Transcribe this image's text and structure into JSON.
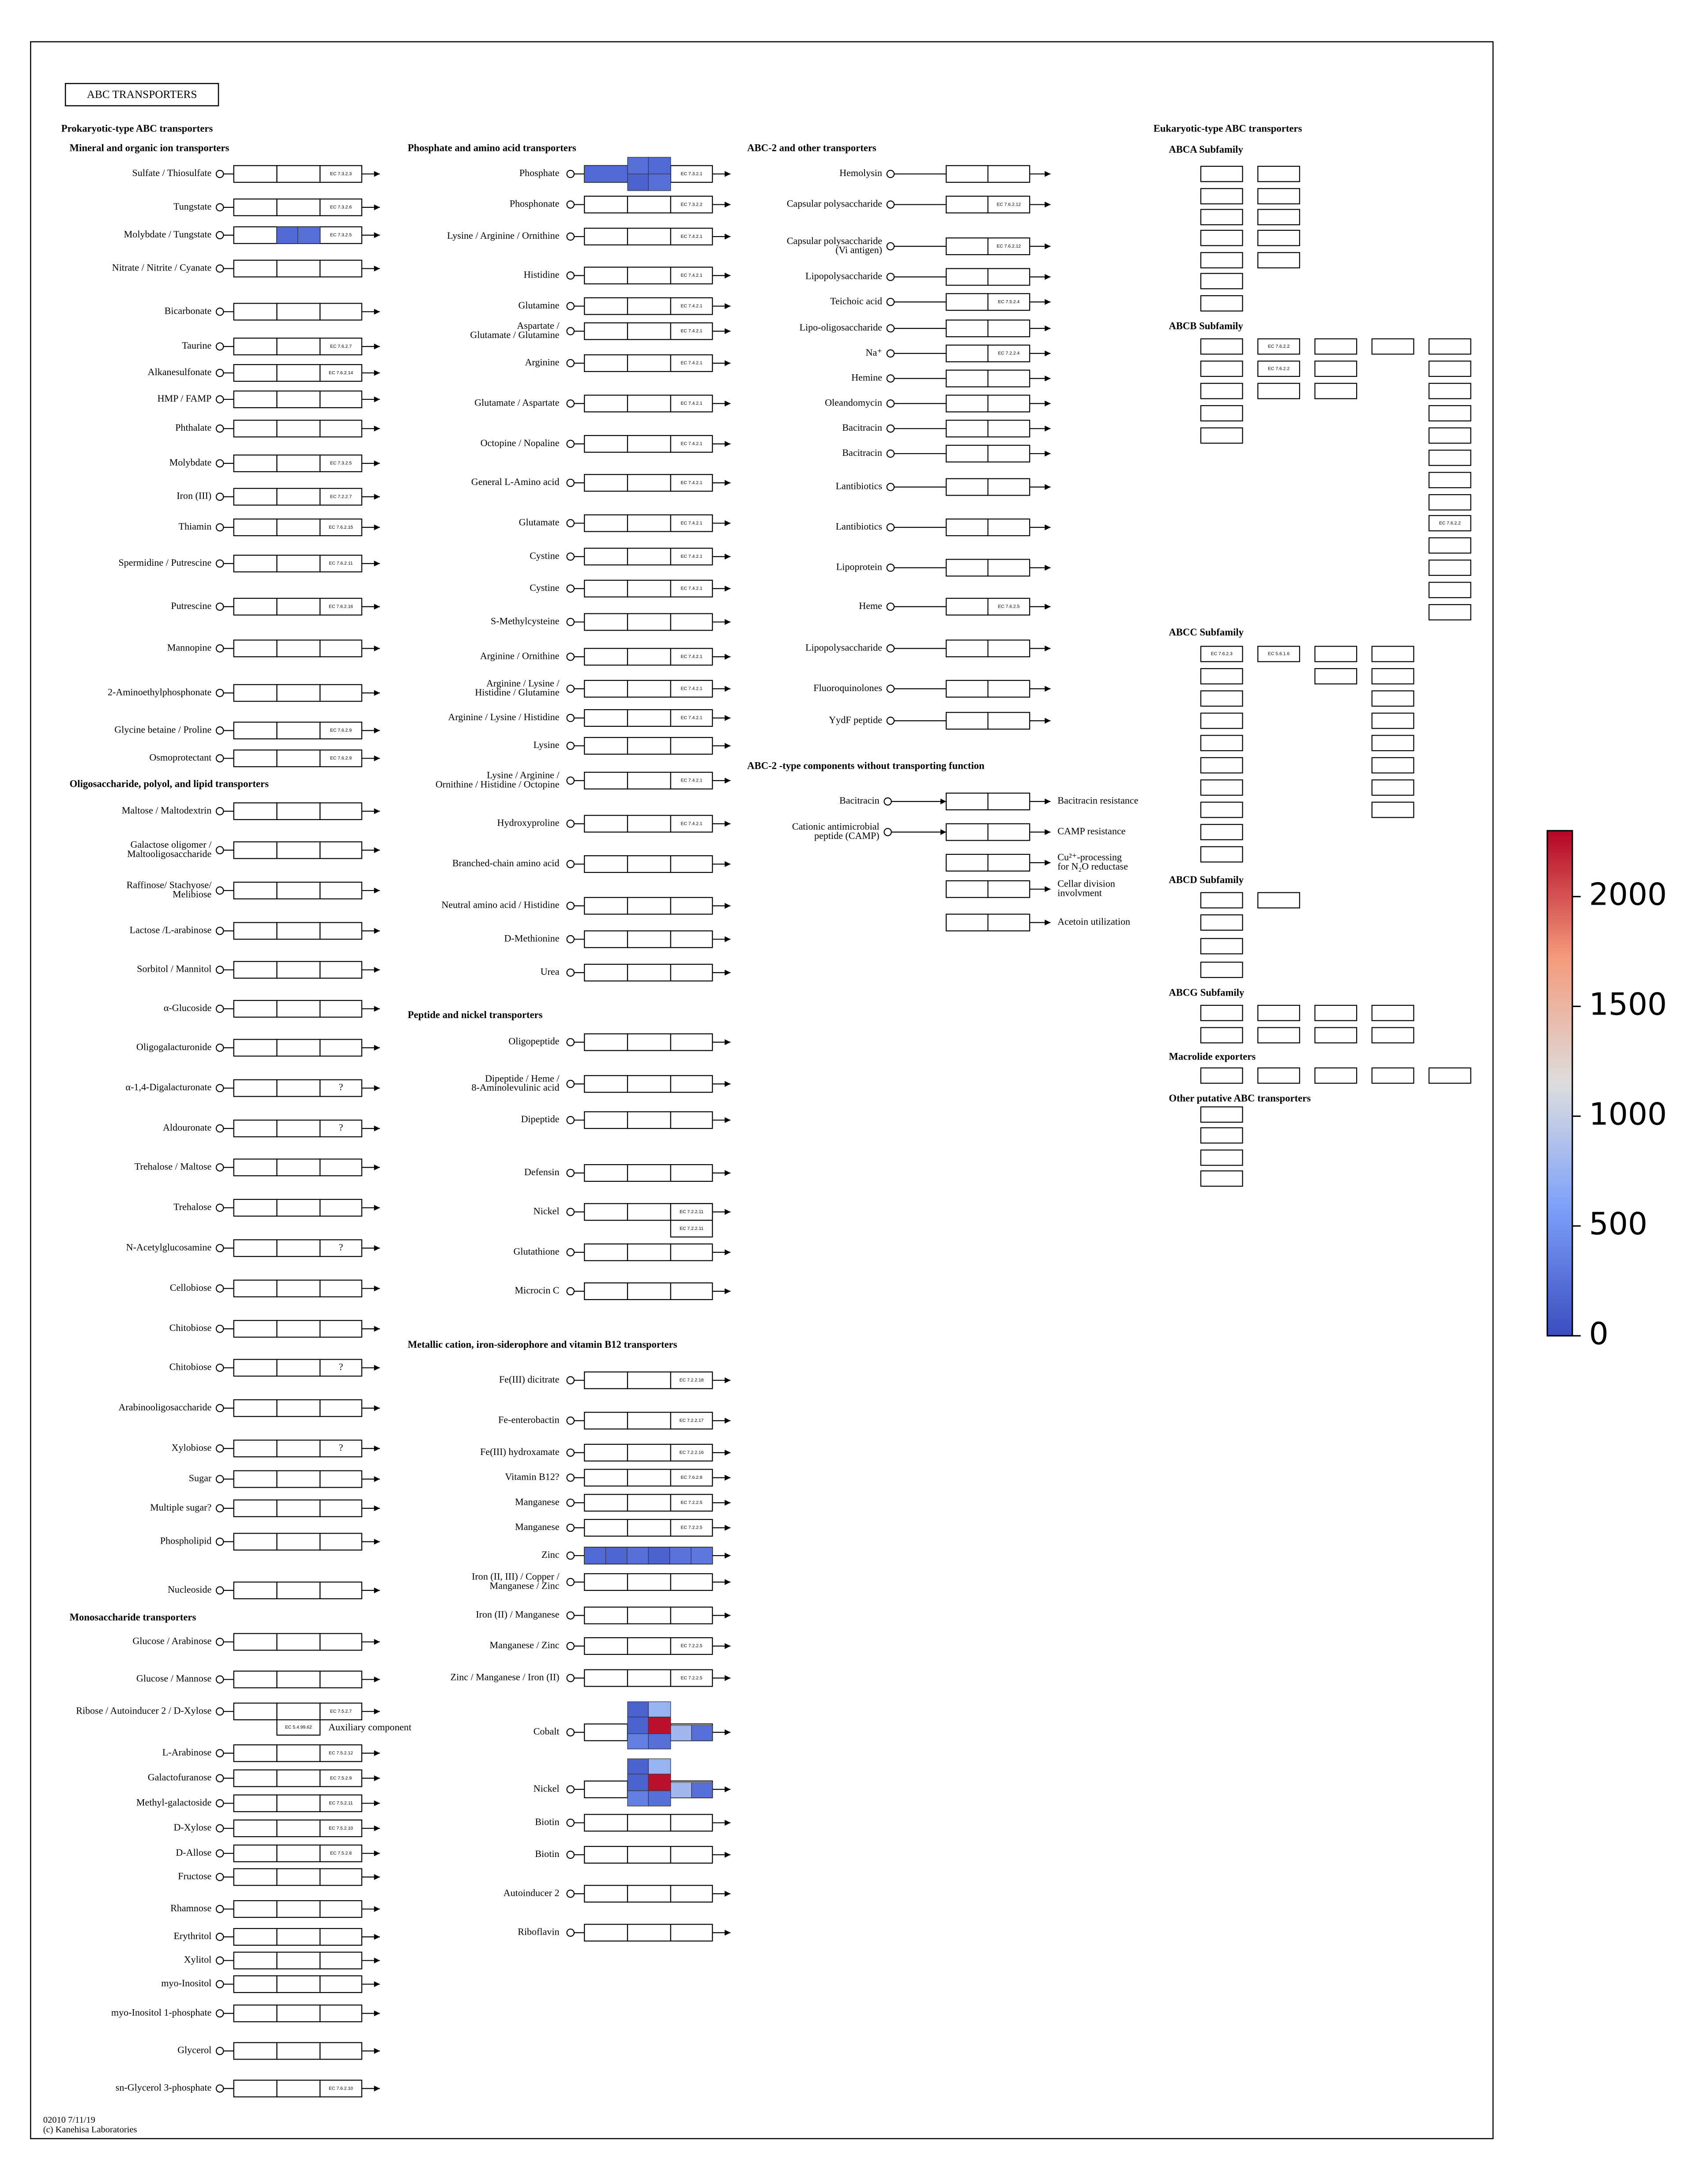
{
  "title": "ABC TRANSPORTERS",
  "prokaryotic_title": "Prokaryotic-type ABC transporters",
  "columns": [
    {
      "groups": [
        {
          "title": "Mineral and organic ion transporters",
          "rows": [
            {
              "label": "Sulfate / Thiosulfate",
              "ec": "EC 7.3.2.3"
            },
            {
              "label": "Tungstate",
              "ec": "EC 7.3.2.6"
            },
            {
              "label": "Molybdate / Tungstate",
              "ec": "EC 7.3.2.5",
              "cells": [
                200,
                250
              ]
            },
            {
              "label": "Nitrate / Nitrite / Cyanate"
            },
            {
              "label": "Bicarbonate"
            },
            {
              "label": "Taurine",
              "ec": "EC 7.6.2.7"
            },
            {
              "label": "Alkanesulfonate",
              "ec": "EC 7.6.2.14"
            },
            {
              "label": "HMP / FAMP"
            },
            {
              "label": "Phthalate"
            },
            {
              "label": "Molybdate",
              "ec": "EC 7.3.2.5"
            },
            {
              "label": "Iron (III)",
              "ec": "EC 7.2.2.7"
            },
            {
              "label": "Thiamin",
              "ec": "EC 7.6.2.15"
            },
            {
              "label": "Spermidine / Putrescine",
              "ec": "EC 7.6.2.11"
            },
            {
              "label": "Putrescine",
              "ec": "EC 7.6.2.16"
            },
            {
              "label": "Mannopine"
            },
            {
              "label": "2-Aminoethylphosphonate"
            },
            {
              "label": "Glycine betaine / Proline",
              "ec": "EC 7.6.2.9"
            },
            {
              "label": "Osmoprotectant",
              "ec": "EC 7.6.2.9"
            }
          ]
        },
        {
          "title": "Oligosaccharide, polyol, and lipid transporters",
          "rows": [
            {
              "label": "Maltose / Maltodextrin"
            },
            {
              "label": [
                "Galactose oligomer /",
                "Maltooligosaccharide"
              ]
            },
            {
              "label": [
                "Raffinose/ Stachyose/",
                "Melibiose"
              ]
            },
            {
              "label": "Lactose /L-arabinose"
            },
            {
              "label": "Sorbitol / Mannitol"
            },
            {
              "label": "α-Glucoside"
            },
            {
              "label": "Oligogalacturonide"
            },
            {
              "label": "α-1,4-Digalacturonate",
              "ec": "?"
            },
            {
              "label": "Aldouronate",
              "ec": "?"
            },
            {
              "label": "Trehalose / Maltose"
            },
            {
              "label": "Trehalose"
            },
            {
              "label": "N-Acetylglucosamine",
              "ec": "?"
            },
            {
              "label": "Cellobiose"
            },
            {
              "label": "Chitobiose"
            },
            {
              "label": "Chitobiose",
              "ec": "?"
            },
            {
              "label": "Arabinooligosaccharide"
            },
            {
              "label": "Xylobiose",
              "ec": "?"
            },
            {
              "label": "Sugar"
            },
            {
              "label": "Multiple sugar?"
            },
            {
              "label": "Phospholipid"
            },
            {
              "label": "Nucleoside"
            }
          ]
        },
        {
          "title": "Monosaccharide transporters",
          "rows": [
            {
              "label": "Glucose / Arabinose"
            },
            {
              "label": "Glucose / Mannose"
            },
            {
              "label": "Ribose / Autoinducer 2 / D-Xylose",
              "ec": "EC 7.5.2.7",
              "aux_ec": "EC 5.4.99.62",
              "aux_label": "Auxiliary component"
            },
            {
              "label": "L-Arabinose",
              "ec": "EC 7.5.2.12"
            },
            {
              "label": "Galactofuranose",
              "ec": "EC 7.5.2.9"
            },
            {
              "label": "Methyl-galactoside",
              "ec": "EC 7.5.2.11"
            },
            {
              "label": "D-Xylose",
              "ec": "EC 7.5.2.10"
            },
            {
              "label": "D-Allose",
              "ec": "EC 7.5.2.8"
            },
            {
              "label": "Fructose"
            },
            {
              "label": "Rhamnose"
            },
            {
              "label": "Erythritol"
            },
            {
              "label": "Xylitol"
            },
            {
              "label": "myo-Inositol"
            },
            {
              "label": "myo-Inositol 1-phosphate"
            },
            {
              "label": "Glycerol"
            },
            {
              "label": "sn-Glycerol 3-phosphate",
              "ec": "EC 7.6.2.10"
            }
          ]
        }
      ]
    },
    {
      "groups": [
        {
          "title": "Phosphate and amino acid transporters",
          "rows": [
            {
              "label": "Phosphate",
              "ec": "EC 7.3.2.1",
              "cells": [
                200,
                250,
                200,
                150,
                250
              ]
            },
            {
              "label": "Phosphonate",
              "ec": "EC 7.3.2.2"
            },
            {
              "label": "Lysine / Arginine / Ornithine",
              "ec": "EC 7.4.2.1"
            },
            {
              "label": "Histidine",
              "ec": "EC 7.4.2.1"
            },
            {
              "label": "Glutamine",
              "ec": "EC 7.4.2.1"
            },
            {
              "label": [
                "Aspartate /",
                "Glutamate / Glutamine"
              ],
              "ec": "EC 7.4.2.1"
            },
            {
              "label": "Arginine",
              "ec": "EC 7.4.2.1"
            },
            {
              "label": "Glutamate / Aspartate",
              "ec": "EC 7.4.2.1"
            },
            {
              "label": "Octopine / Nopaline",
              "ec": "EC 7.4.2.1"
            },
            {
              "label": "General L-Amino acid",
              "ec": "EC 7.4.2.1"
            },
            {
              "label": "Glutamate",
              "ec": "EC 7.4.2.1"
            },
            {
              "label": "Cystine",
              "ec": "EC 7.4.2.1"
            },
            {
              "label": "Cystine",
              "ec": "EC 7.4.2.1"
            },
            {
              "label": "S-Methylcysteine"
            },
            {
              "label": "Arginine / Ornithine",
              "ec": "EC 7.4.2.1"
            },
            {
              "label": [
                "Arginine / Lysine /",
                "Histidine / Glutamine"
              ],
              "ec": "EC 7.4.2.1"
            },
            {
              "label": "Arginine / Lysine / Histidine",
              "ec": "EC 7.4.2.1"
            },
            {
              "label": "Lysine"
            },
            {
              "label": [
                "Lysine / Arginine /",
                "Ornithine / Histidine / Octopine"
              ],
              "ec": "EC 7.4.2.1"
            },
            {
              "label": "Hydroxyproline",
              "ec": "EC 7.4.2.1"
            },
            {
              "label": "Branched-chain amino acid"
            },
            {
              "label": "Neutral amino acid / Histidine"
            },
            {
              "label": "D-Methionine"
            },
            {
              "label": "Urea"
            }
          ]
        },
        {
          "title": "Peptide and nickel transporters",
          "rows": [
            {
              "label": "Oligopeptide"
            },
            {
              "label": [
                "Dipeptide / Heme /",
                "8-Aminolevulinic acid"
              ]
            },
            {
              "label": "Dipeptide"
            },
            {
              "label": "Defensin"
            },
            {
              "label": "Nickel",
              "ec": [
                "EC 7.2.2.11",
                "EC 7.2.2.11"
              ]
            },
            {
              "label": "Glutathione"
            },
            {
              "label": "Microcin C"
            }
          ]
        },
        {
          "title": "Metallic cation, iron-siderophore and vitamin B12 transporters",
          "rows": [
            {
              "label": "Fe(III) dicitrate",
              "ec": "EC 7.2.2.18"
            },
            {
              "label": "Fe-enterobactin",
              "ec": "EC 7.2.2.17"
            },
            {
              "label": "Fe(III) hydroxamate",
              "ec": "EC 7.2.2.16"
            },
            {
              "label": "Vitamin B12?",
              "ec": "EC 7.6.2.8"
            },
            {
              "label": "Manganese",
              "ec": "EC 7.2.2.5"
            },
            {
              "label": "Manganese",
              "ec": "EC 7.2.2.5"
            },
            {
              "label": "Zinc",
              "ec": "EC 7.2.2.20",
              "cells": [
                200,
                180,
                250,
                150,
                280,
                300
              ]
            },
            {
              "label": [
                "Iron (II, III) / Copper /",
                "Manganese / Zinc"
              ]
            },
            {
              "label": "Iron (II) / Manganese"
            },
            {
              "label": "Manganese / Zinc",
              "ec": "EC 7.2.2.5"
            },
            {
              "label": "Zinc / Manganese / Iron (II)",
              "ec": "EC 7.2.2.5"
            },
            {
              "label": "Cobalt",
              "cells": [
                150,
                750,
                150,
                2250,
                350,
                250,
                800,
                250
              ]
            },
            {
              "label": "Nickel",
              "cells": [
                150,
                750,
                150,
                2250,
                350,
                250,
                800,
                250
              ]
            },
            {
              "label": "Biotin"
            },
            {
              "label": "Biotin"
            },
            {
              "label": "Autoinducer 2"
            },
            {
              "label": "Riboflavin"
            }
          ]
        }
      ]
    },
    {
      "groups": [
        {
          "title": "ABC-2 and other transporters",
          "rows": [
            {
              "label": "Hemolysin"
            },
            {
              "label": "Capsular polysaccharide",
              "ec": "EC 7.6.2.12"
            },
            {
              "label": [
                "Capsular polysaccharide",
                "(Vi antigen)"
              ],
              "ec": "EC 7.6.2.12"
            },
            {
              "label": "Lipopolysaccharide"
            },
            {
              "label": "Teichoic acid",
              "ec": "EC 7.5.2.4"
            },
            {
              "label": "Lipo-oligosaccharide"
            },
            {
              "label": "Na⁺",
              "ec": "EC 7.2.2.4"
            },
            {
              "label": "Hemine"
            },
            {
              "label": "Oleandomycin"
            },
            {
              "label": "Bacitracin"
            },
            {
              "label": "Bacitracin"
            },
            {
              "label": "Lantibiotics"
            },
            {
              "label": "Lantibiotics"
            },
            {
              "label": "Lipoprotein"
            },
            {
              "label": "Heme",
              "ec": "EC 7.6.2.5"
            },
            {
              "label": "Lipopolysaccharide"
            },
            {
              "label": "Fluoroquinolones"
            },
            {
              "label": "YydF peptide"
            }
          ]
        },
        {
          "title": "ABC-2 -type components without transporting function",
          "rows": [
            {
              "label": "Bacitracin",
              "note": "Bacitracin resistance"
            },
            {
              "label": [
                "Cationic antimicrobial",
                "peptide (CAMP)"
              ],
              "note": "CAMP resistance"
            },
            {
              "note": [
                "Cu²⁺-processing",
                "for N₂O reductase"
              ]
            },
            {
              "note": [
                "Cellar division",
                "involvment"
              ]
            },
            {
              "note": "Acetoin utilization"
            }
          ]
        }
      ]
    }
  ],
  "eukaryotic": {
    "title": "Eukaryotic-type ABC transporters",
    "subfamilies": [
      {
        "title": "ABCA Subfamily"
      },
      {
        "title": "ABCB Subfamily",
        "labels": [
          "EC 7.6.2.2",
          "EC 7.6.2.2",
          "EC 7.6.2.2"
        ]
      },
      {
        "title": "ABCC Subfamily",
        "labels": [
          "EC 7.6.2.3",
          "EC 5.6.1.6"
        ]
      },
      {
        "title": "ABCD Subfamily"
      },
      {
        "title": "ABCG Subfamily"
      },
      {
        "title": "Macrolide exporters"
      },
      {
        "title": "Other putative ABC transporters"
      }
    ]
  },
  "colorbar": {
    "lim": [
      0,
      2300
    ],
    "ticks": [
      0,
      500,
      1000,
      1500,
      2000
    ]
  },
  "footer": [
    "02010 7/11/19",
    "(c) Kanehisa Laboratories"
  ]
}
